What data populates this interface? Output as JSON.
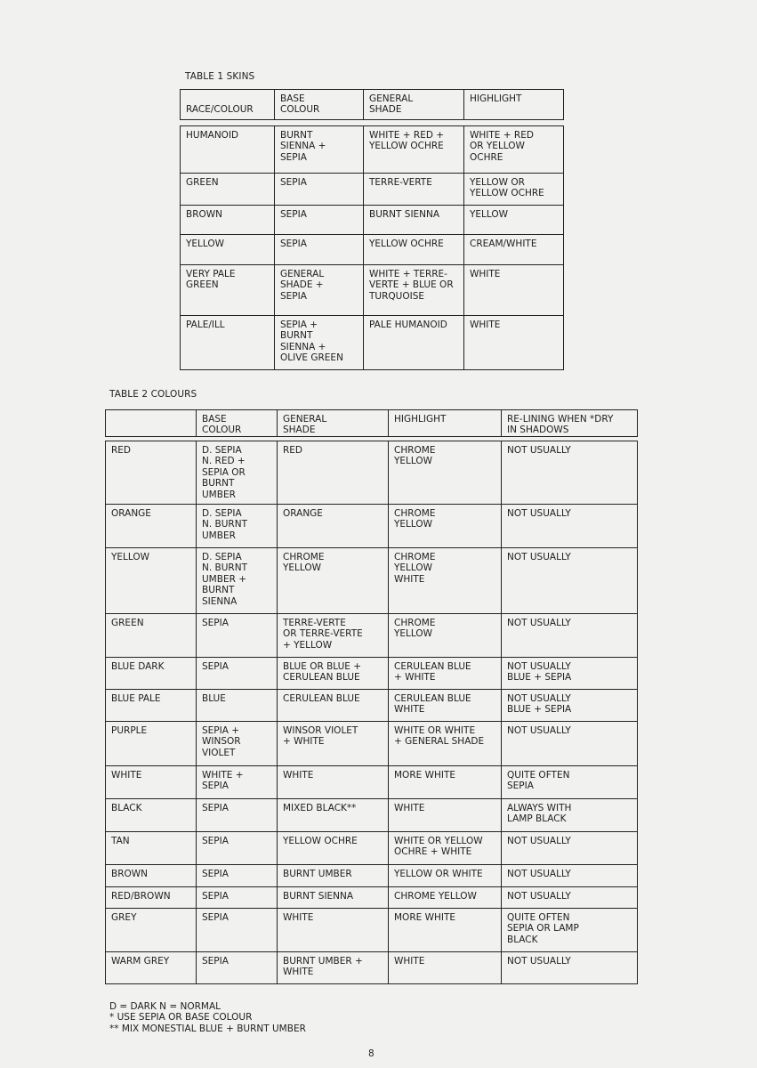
{
  "table1": {
    "caption": "TABLE 1 SKINS",
    "headers": [
      "RACE/COLOUR",
      "BASE\nCOLOUR",
      "GENERAL\nSHADE",
      "HIGHLIGHT"
    ],
    "rows": [
      [
        "HUMANOID",
        "BURNT\nSIENNA +\nSEPIA",
        "WHITE + RED +\nYELLOW OCHRE",
        "WHITE + RED\nOR YELLOW\nOCHRE"
      ],
      [
        "GREEN",
        "SEPIA",
        "TERRE-VERTE",
        "YELLOW OR\nYELLOW OCHRE"
      ],
      [
        "BROWN",
        "SEPIA",
        "BURNT SIENNA",
        "YELLOW"
      ],
      [
        "YELLOW",
        "SEPIA",
        "YELLOW OCHRE",
        "CREAM/WHITE"
      ],
      [
        "VERY PALE\nGREEN",
        "GENERAL\nSHADE +\nSEPIA",
        "WHITE + TERRE-\nVERTE + BLUE OR\nTURQUOISE",
        "WHITE"
      ],
      [
        "PALE/ILL",
        "SEPIA +\nBURNT\nSIENNA +\nOLIVE GREEN",
        "PALE HUMANOID",
        "WHITE"
      ]
    ]
  },
  "table2": {
    "caption": "TABLE 2 COLOURS",
    "headers": [
      "",
      "BASE\nCOLOUR",
      "GENERAL\nSHADE",
      "HIGHLIGHT",
      "RE-LINING WHEN *DRY\nIN SHADOWS"
    ],
    "rows": [
      [
        "RED",
        "D. SEPIA\nN. RED +\nSEPIA OR\nBURNT\nUMBER",
        "RED",
        "CHROME\nYELLOW",
        "NOT USUALLY"
      ],
      [
        "ORANGE",
        "D. SEPIA\nN. BURNT\nUMBER",
        "ORANGE",
        "CHROME\nYELLOW",
        "NOT USUALLY"
      ],
      [
        "YELLOW",
        "D. SEPIA\nN. BURNT\nUMBER +\nBURNT\nSIENNA",
        "CHROME\nYELLOW",
        "CHROME\nYELLOW\nWHITE",
        "NOT USUALLY"
      ],
      [
        "GREEN",
        "SEPIA",
        "TERRE-VERTE\nOR TERRE-VERTE\n+ YELLOW",
        "CHROME\nYELLOW",
        "NOT USUALLY"
      ],
      [
        "BLUE DARK",
        "SEPIA",
        "BLUE OR BLUE +\nCERULEAN BLUE",
        "CERULEAN BLUE\n+ WHITE",
        "NOT USUALLY\nBLUE + SEPIA"
      ],
      [
        "BLUE PALE",
        "BLUE",
        "CERULEAN BLUE",
        "CERULEAN BLUE\nWHITE",
        "NOT USUALLY\nBLUE + SEPIA"
      ],
      [
        "PURPLE",
        "SEPIA +\nWINSOR\nVIOLET",
        "WINSOR VIOLET\n+ WHITE",
        "WHITE OR WHITE\n+ GENERAL SHADE",
        "NOT USUALLY"
      ],
      [
        "WHITE",
        "WHITE +\nSEPIA",
        "WHITE",
        "MORE WHITE",
        "QUITE OFTEN\nSEPIA"
      ],
      [
        "BLACK",
        "SEPIA",
        "MIXED BLACK**",
        "WHITE",
        "ALWAYS WITH\nLAMP BLACK"
      ],
      [
        "TAN",
        "SEPIA",
        "YELLOW OCHRE",
        "WHITE OR YELLOW\nOCHRE + WHITE",
        "NOT USUALLY"
      ],
      [
        "BROWN",
        "SEPIA",
        "BURNT UMBER",
        "YELLOW OR WHITE",
        "NOT USUALLY"
      ],
      [
        "RED/BROWN",
        "SEPIA",
        "BURNT SIENNA",
        "CHROME YELLOW",
        "NOT USUALLY"
      ],
      [
        "GREY",
        "SEPIA",
        "WHITE",
        "MORE WHITE",
        "QUITE OFTEN\nSEPIA OR LAMP\nBLACK"
      ],
      [
        "WARM GREY",
        "SEPIA",
        "BURNT UMBER +\nWHITE",
        "WHITE",
        "NOT USUALLY"
      ]
    ]
  },
  "footnotes": [
    "D = DARK  N = NORMAL",
    "* USE SEPIA OR BASE COLOUR",
    "** MIX MONESTIAL BLUE + BURNT UMBER"
  ],
  "page_number": "8"
}
